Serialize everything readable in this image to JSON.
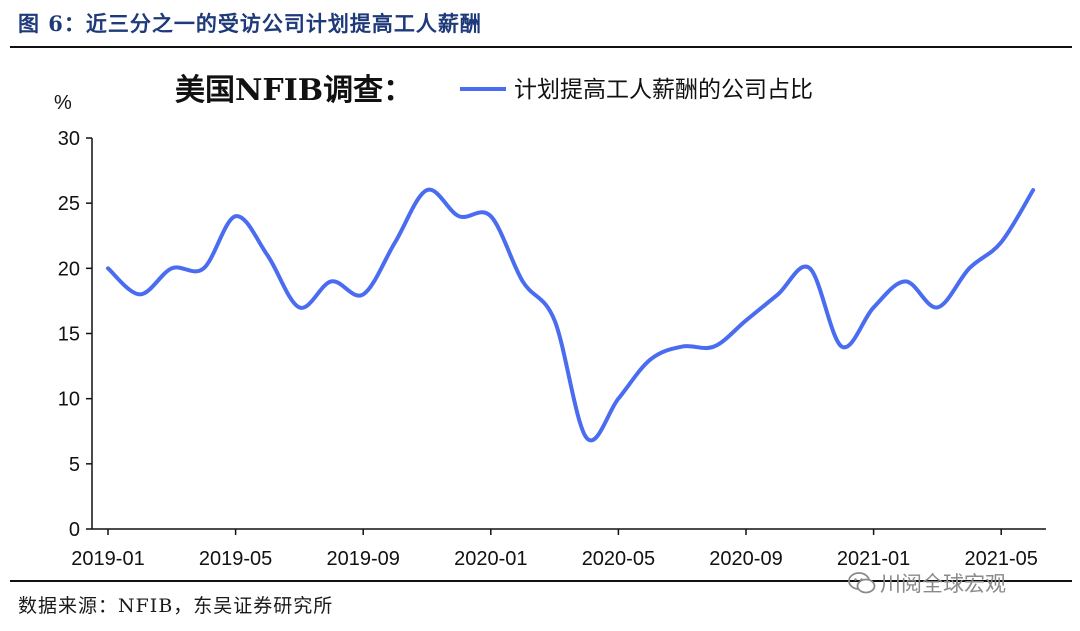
{
  "figure_caption": "图 6：近三分之一的受访公司计划提高工人薪酬",
  "source_note": "数据来源：NFIB，东吴证券研究所",
  "watermark": {
    "text": "川阅全球宏观",
    "icon": "wechat-icon"
  },
  "colors": {
    "line": "#4a6cf0",
    "caption": "#1f3a7a"
  },
  "chart_data": {
    "type": "line",
    "title": "美国NFIB调查：",
    "ylabel": "%",
    "ylim": [
      0,
      30
    ],
    "yticks": [
      0,
      5,
      10,
      15,
      20,
      25,
      30
    ],
    "grid": false,
    "legend": {
      "placement": "top-right"
    },
    "x": [
      "2019-01",
      "2019-02",
      "2019-03",
      "2019-04",
      "2019-05",
      "2019-06",
      "2019-07",
      "2019-08",
      "2019-09",
      "2019-10",
      "2019-11",
      "2019-12",
      "2020-01",
      "2020-02",
      "2020-03",
      "2020-04",
      "2020-05",
      "2020-06",
      "2020-07",
      "2020-08",
      "2020-09",
      "2020-10",
      "2020-11",
      "2020-12",
      "2021-01",
      "2021-02",
      "2021-03",
      "2021-04",
      "2021-05",
      "2021-06"
    ],
    "xtick_labels": [
      "2019-01",
      "2019-05",
      "2019-09",
      "2020-01",
      "2020-05",
      "2020-09",
      "2021-01",
      "2021-05"
    ],
    "series": [
      {
        "name": "计划提高工人薪酬的公司占比",
        "values": [
          20,
          18,
          20,
          20,
          24,
          21,
          17,
          19,
          18,
          22,
          26,
          24,
          24,
          19,
          16,
          7,
          10,
          13,
          14,
          14,
          16,
          18,
          20,
          14,
          17,
          19,
          17,
          20,
          22,
          26
        ]
      }
    ]
  }
}
